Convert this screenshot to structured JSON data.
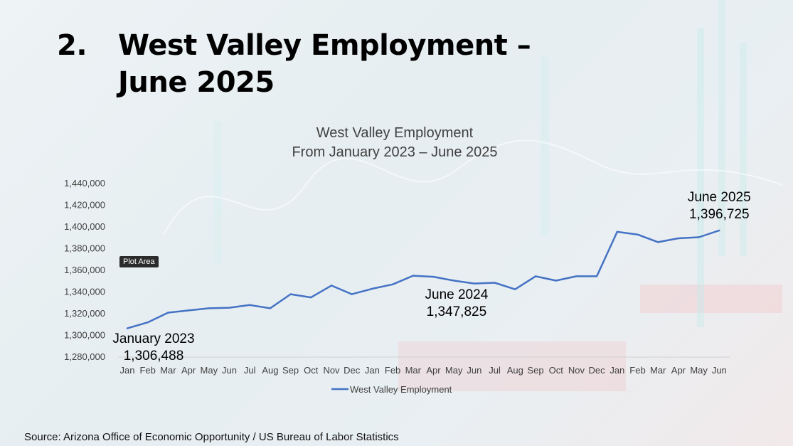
{
  "slide": {
    "number": "2.",
    "title_line1": "West Valley Employment –",
    "title_line2": "June 2025",
    "source": "Source: Arizona Office of Economic Opportunity / US Bureau of Labor Statistics",
    "tooltip": "Plot Area"
  },
  "chart_data": {
    "type": "line",
    "title": "West Valley Employment",
    "subtitle": "From January 2023 – June 2025",
    "categories": [
      "Jan",
      "Feb",
      "Mar",
      "Apr",
      "May",
      "Jun",
      "Jul",
      "Aug",
      "Sep",
      "Oct",
      "Nov",
      "Dec",
      "Jan",
      "Feb",
      "Mar",
      "Apr",
      "May",
      "Jun",
      "Jul",
      "Aug",
      "Sep",
      "Oct",
      "Nov",
      "Dec",
      "Jan",
      "Feb",
      "Mar",
      "Apr",
      "May",
      "Jun"
    ],
    "series": [
      {
        "name": "West Valley Employment",
        "color": "#4472c4",
        "values": [
          1306488,
          1312000,
          1321000,
          1323000,
          1325000,
          1325500,
          1328000,
          1325000,
          1338000,
          1335000,
          1346000,
          1338000,
          1343000,
          1347000,
          1355000,
          1354000,
          1350500,
          1347825,
          1348500,
          1342500,
          1354500,
          1350500,
          1354500,
          1354500,
          1395500,
          1393000,
          1386000,
          1389500,
          1390500,
          1396725
        ]
      }
    ],
    "ylim": [
      1280000,
      1440000
    ],
    "yticks": [
      1280000,
      1300000,
      1320000,
      1340000,
      1360000,
      1380000,
      1400000,
      1420000,
      1440000
    ],
    "ytick_labels": [
      "1,280,000",
      "1,300,000",
      "1,320,000",
      "1,340,000",
      "1,360,000",
      "1,380,000",
      "1,400,000",
      "1,420,000",
      "1,440,000"
    ],
    "grid": false,
    "legend": "bottom",
    "annotations": [
      {
        "index": 0,
        "line1": "January 2023",
        "line2": "1,306,488"
      },
      {
        "index": 17,
        "line1": "June 2024",
        "line2": "1,347,825"
      },
      {
        "index": 29,
        "line1": "June 2025",
        "line2": "1,396,725"
      }
    ]
  }
}
